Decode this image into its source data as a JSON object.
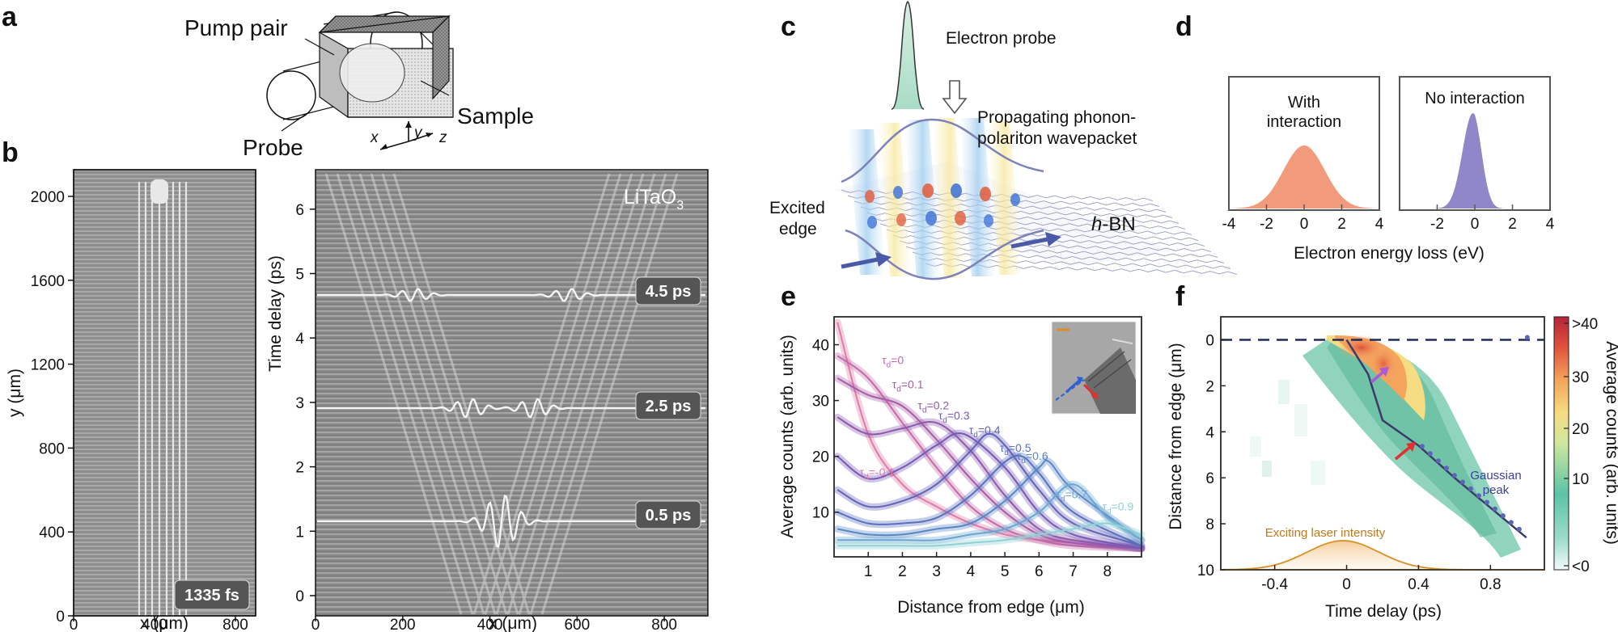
{
  "panels": {
    "a": {
      "label": "a",
      "pump_pair": "Pump pair",
      "sample": "Sample",
      "probe": "Probe",
      "axis_x": "x",
      "axis_y": "y",
      "axis_z": "z"
    },
    "b": {
      "label": "b",
      "left": {
        "ylabel": "y (μm)",
        "xlabel": "x (μm)",
        "yticks": [
          "0",
          "400",
          "800",
          "1200",
          "1600",
          "2000"
        ],
        "xticks": [
          "0",
          "400",
          "800"
        ],
        "badge": "1335 fs"
      },
      "right": {
        "material": "LiTaO",
        "material_sub": "3",
        "ylabel": "Time delay (ps)",
        "xlabel": "x (μm)",
        "yticks": [
          "0",
          "1",
          "2",
          "3",
          "4",
          "5",
          "6"
        ],
        "xticks": [
          "0",
          "200",
          "400",
          "600",
          "800"
        ],
        "badges": [
          "4.5 ps",
          "2.5 ps",
          "0.5 ps"
        ]
      }
    },
    "c": {
      "label": "c",
      "electron_probe": "Electron probe",
      "wavepacket_line1": "Propagating phonon-",
      "wavepacket_line2": "polariton wavepacket",
      "excited_line1": "Excited",
      "excited_line2": "edge",
      "hbn_italic": "h",
      "hbn_rest": "-BN"
    },
    "d": {
      "label": "d",
      "with_line1": "With",
      "with_line2": "interaction",
      "no_interaction": "No interaction",
      "xlabel": "Electron energy loss (eV)",
      "xticks_left": [
        "-4",
        "-2",
        "0",
        "2",
        "4"
      ],
      "xticks_right": [
        "-4",
        "-2",
        "0",
        "2",
        "4"
      ],
      "colors": {
        "with": "#f19a7c",
        "without": "#8f87c8"
      }
    },
    "e": {
      "label": "e",
      "ylabel": "Average counts (arb. units)",
      "xlabel": "Distance from edge (μm)",
      "yticks": [
        "10",
        "20",
        "30",
        "40"
      ],
      "xticks": [
        "1",
        "2",
        "3",
        "4",
        "5",
        "6",
        "7",
        "8"
      ]
    },
    "f": {
      "label": "f",
      "ylabel": "Distance from edge (μm)",
      "xlabel": "Time delay (ps)",
      "yticks": [
        "0",
        "2",
        "4",
        "6",
        "8",
        "10"
      ],
      "xticks": [
        "-0.4",
        "0",
        "0.4",
        "0.8"
      ],
      "gaussian_line1": "Gaussian",
      "gaussian_line2": "peak",
      "laser_label": "Exciting laser intensity",
      "colorbar_label": "Average counts (arb. units)",
      "colorbar_ticks": [
        ">40",
        "30",
        "20",
        "10",
        "<0"
      ],
      "colors": {
        "laser": "#d9902a",
        "peak_line": "#3b3a6a",
        "dashed": "#1f2b5e"
      }
    }
  },
  "chart_data": [
    {
      "type": "area",
      "title": "With interaction",
      "xlabel": "Electron energy loss (eV)",
      "xlim": [
        -4,
        4
      ],
      "series": [
        {
          "name": "With interaction",
          "x": [
            -4,
            -3,
            -2,
            -1,
            0,
            1,
            2,
            3,
            4
          ],
          "values": [
            0.01,
            0.06,
            0.2,
            0.42,
            0.52,
            0.42,
            0.2,
            0.06,
            0.01
          ]
        }
      ]
    },
    {
      "type": "area",
      "title": "No interaction",
      "xlabel": "Electron energy loss (eV)",
      "xlim": [
        -4,
        4
      ],
      "series": [
        {
          "name": "No interaction",
          "x": [
            -2,
            -1,
            -0.5,
            -0.2,
            0,
            0.5,
            1,
            2
          ],
          "values": [
            0.02,
            0.25,
            0.7,
            0.97,
            1.0,
            0.5,
            0.12,
            0.01
          ]
        }
      ]
    },
    {
      "type": "line",
      "xlabel": "Distance from edge (μm)",
      "ylabel": "Average counts (arb. units)",
      "xlim": [
        0,
        9
      ],
      "ylim": [
        2,
        45
      ],
      "series": [
        {
          "name": "τd=-0.1",
          "color": "#e07aa8",
          "x": [
            0.1,
            1,
            2,
            3,
            4,
            5,
            6,
            7,
            8,
            9
          ],
          "values": [
            44,
            24,
            15,
            11,
            8,
            6,
            5,
            4.5,
            4,
            3.5
          ]
        },
        {
          "name": "τd=0",
          "color": "#c26aa8",
          "x": [
            0.1,
            1,
            2,
            2.5,
            3,
            4,
            5,
            6,
            7,
            9
          ],
          "values": [
            38,
            34,
            26,
            22,
            18,
            11,
            7,
            5,
            4,
            3.5
          ]
        },
        {
          "name": "τd=0.1",
          "color": "#a85ca8",
          "x": [
            0.1,
            1,
            2,
            3,
            4,
            5,
            6,
            7,
            9
          ],
          "values": [
            34,
            31,
            29,
            23,
            16,
            10,
            6,
            4.5,
            3.5
          ]
        },
        {
          "name": "τd=0.2",
          "color": "#8e58ad",
          "x": [
            0.1,
            1,
            2,
            3,
            4,
            5,
            6,
            7,
            9
          ],
          "values": [
            27,
            24,
            25,
            26,
            21,
            13,
            7,
            5,
            3.5
          ]
        },
        {
          "name": "τd=0.3",
          "color": "#7858b4",
          "x": [
            0.1,
            1,
            2,
            3,
            3.8,
            5,
            6,
            7,
            9
          ],
          "values": [
            20,
            16,
            18,
            22,
            24,
            18,
            10,
            6,
            3.5
          ]
        },
        {
          "name": "τd=0.4",
          "color": "#6460b8",
          "x": [
            0.1,
            1,
            2,
            3,
            4,
            4.5,
            5,
            6,
            7,
            9
          ],
          "values": [
            14,
            11,
            12,
            15,
            21,
            24,
            22,
            14,
            8,
            4
          ]
        },
        {
          "name": "τd=0.5",
          "color": "#5a70bf",
          "x": [
            0.1,
            1,
            2,
            3,
            4,
            5,
            5.5,
            6,
            7,
            9
          ],
          "values": [
            10,
            8,
            8,
            9,
            13,
            19,
            20,
            17,
            10,
            4
          ]
        },
        {
          "name": "τd=0.6",
          "color": "#5886c6",
          "x": [
            0.1,
            1,
            2,
            3,
            4,
            5,
            6,
            6.3,
            7,
            9
          ],
          "values": [
            7,
            6,
            6,
            7,
            8,
            12,
            18,
            19,
            14,
            5
          ]
        },
        {
          "name": "τd=0.7",
          "color": "#6ba6d2",
          "x": [
            0.1,
            1,
            2,
            3,
            4,
            5,
            6,
            7,
            8,
            9
          ],
          "values": [
            5,
            5,
            5,
            5,
            6,
            7,
            10,
            15,
            9,
            5
          ]
        },
        {
          "name": "τd=0.9",
          "color": "#8ed2d6",
          "x": [
            0.1,
            1,
            2,
            3,
            4,
            5,
            6,
            7,
            8,
            9
          ],
          "values": [
            4,
            4,
            4,
            4,
            4.5,
            5,
            6,
            7,
            8,
            6
          ]
        }
      ]
    },
    {
      "type": "heatmap",
      "xlabel": "Time delay (ps)",
      "ylabel": "Distance from edge (μm)",
      "xlim": [
        -0.7,
        1.1
      ],
      "ylim": [
        10,
        -1
      ],
      "colorbar": {
        "label": "Average counts (arb. units)",
        "range": [
          "<0",
          ">40"
        ]
      },
      "series": [
        {
          "name": "Gaussian peak",
          "x": [
            0,
            0.12,
            0.2,
            0.4,
            0.6,
            0.8,
            1.0
          ],
          "values": [
            0,
            1.5,
            3.5,
            4.6,
            6.0,
            7.3,
            8.6
          ]
        },
        {
          "name": "Exciting laser intensity",
          "x": [
            -0.7,
            -0.4,
            -0.2,
            0,
            0.2,
            0.4,
            0.6,
            1.1
          ],
          "values": [
            0,
            0.1,
            0.6,
            1.0,
            0.6,
            0.1,
            0.02,
            0
          ]
        }
      ]
    }
  ]
}
